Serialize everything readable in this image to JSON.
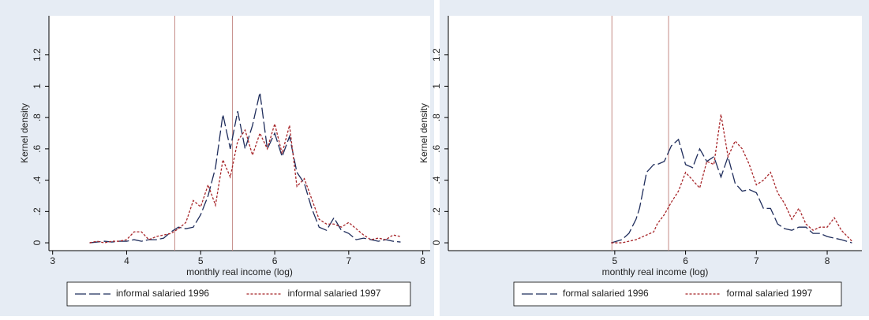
{
  "chart_data": [
    {
      "type": "line",
      "ylabel": "Kernel density",
      "xlabel": "monthly real income (log)",
      "x": [
        3.5,
        3.6,
        3.7,
        3.8,
        3.9,
        4.0,
        4.1,
        4.2,
        4.3,
        4.4,
        4.5,
        4.6,
        4.7,
        4.8,
        4.9,
        5.0,
        5.1,
        5.2,
        5.3,
        5.4,
        5.5,
        5.6,
        5.7,
        5.8,
        5.9,
        6.0,
        6.1,
        6.2,
        6.3,
        6.4,
        6.5,
        6.6,
        6.7,
        6.8,
        6.9,
        7.0,
        7.1,
        7.2,
        7.3,
        7.4,
        7.5,
        7.6,
        7.7
      ],
      "series": [
        {
          "name": "informal salaried 1996",
          "color": "#1f2d5c",
          "dash": "long",
          "values": [
            0,
            0.005,
            0.01,
            0.005,
            0.01,
            0.01,
            0.02,
            0.01,
            0.02,
            0.02,
            0.03,
            0.07,
            0.1,
            0.09,
            0.1,
            0.18,
            0.3,
            0.48,
            0.82,
            0.6,
            0.84,
            0.6,
            0.75,
            0.96,
            0.6,
            0.7,
            0.55,
            0.68,
            0.45,
            0.38,
            0.22,
            0.1,
            0.08,
            0.16,
            0.08,
            0.06,
            0.02,
            0.03,
            0.02,
            0.01,
            0.02,
            0.01,
            0.005
          ]
        },
        {
          "name": "informal salaried 1997",
          "color": "#a8272b",
          "dash": "short",
          "values": [
            0,
            0.01,
            0,
            0.01,
            0.01,
            0.02,
            0.07,
            0.07,
            0.02,
            0.04,
            0.05,
            0.06,
            0.09,
            0.13,
            0.27,
            0.23,
            0.37,
            0.24,
            0.53,
            0.42,
            0.65,
            0.72,
            0.56,
            0.7,
            0.6,
            0.76,
            0.57,
            0.75,
            0.36,
            0.41,
            0.28,
            0.15,
            0.12,
            0.12,
            0.1,
            0.13,
            0.09,
            0.05,
            0.02,
            0.03,
            0.02,
            0.05,
            0.04
          ]
        }
      ],
      "xlines": [
        4.65,
        5.43
      ],
      "xlim": [
        2.95,
        8.1
      ],
      "xticks": [
        3,
        4,
        5,
        6,
        7,
        8
      ],
      "ylim": [
        -0.05,
        1.45
      ],
      "yticks": [
        0,
        {
          "value": 0.2,
          "label": ".2"
        },
        {
          "value": 0.4,
          "label": ".4"
        },
        {
          "value": 0.6,
          "label": ".6"
        },
        {
          "value": 0.8,
          "label": ".8"
        },
        1,
        {
          "value": 1.2,
          "label": "1.2"
        }
      ]
    },
    {
      "type": "line",
      "ylabel": "Kernel density",
      "xlabel": "monthly real income (log)",
      "x": [
        4.95,
        5.1,
        5.2,
        5.3,
        5.35,
        5.45,
        5.55,
        5.6,
        5.7,
        5.8,
        5.9,
        6.0,
        6.1,
        6.2,
        6.3,
        6.4,
        6.5,
        6.6,
        6.7,
        6.8,
        6.9,
        7.0,
        7.1,
        7.2,
        7.3,
        7.4,
        7.5,
        7.6,
        7.7,
        7.8,
        7.9,
        8.0,
        8.1,
        8.2,
        8.35
      ],
      "series": [
        {
          "name": "formal salaried 1996",
          "color": "#1f2d5c",
          "dash": "long",
          "values": [
            0,
            0.02,
            0.06,
            0.15,
            0.22,
            0.45,
            0.5,
            0.5,
            0.52,
            0.62,
            0.66,
            0.5,
            0.48,
            0.6,
            0.52,
            0.55,
            0.42,
            0.55,
            0.38,
            0.33,
            0.34,
            0.32,
            0.22,
            0.22,
            0.12,
            0.09,
            0.08,
            0.1,
            0.1,
            0.06,
            0.06,
            0.04,
            0.03,
            0.02,
            0
          ]
        },
        {
          "name": "formal salaried 1997",
          "color": "#a8272b",
          "dash": "short",
          "values": [
            0,
            0,
            0.01,
            0.02,
            0.03,
            0.05,
            0.07,
            0.12,
            0.18,
            0.26,
            0.33,
            0.45,
            0.4,
            0.35,
            0.52,
            0.5,
            0.82,
            0.55,
            0.65,
            0.6,
            0.5,
            0.37,
            0.4,
            0.45,
            0.32,
            0.25,
            0.15,
            0.22,
            0.12,
            0.08,
            0.1,
            0.1,
            0.16,
            0.08,
            0.01
          ]
        }
      ],
      "xlines": [
        4.96,
        5.76
      ],
      "xlim": [
        2.65,
        8.49
      ],
      "xticks": [
        5,
        6,
        7,
        8
      ],
      "ylim": [
        -0.05,
        1.45
      ],
      "yticks": [
        0,
        {
          "value": 0.2,
          "label": ".2"
        },
        {
          "value": 0.4,
          "label": ".4"
        },
        {
          "value": 0.6,
          "label": ".6"
        },
        {
          "value": 0.8,
          "label": ".8"
        },
        1,
        {
          "value": 1.2,
          "label": "1.2"
        }
      ]
    }
  ]
}
